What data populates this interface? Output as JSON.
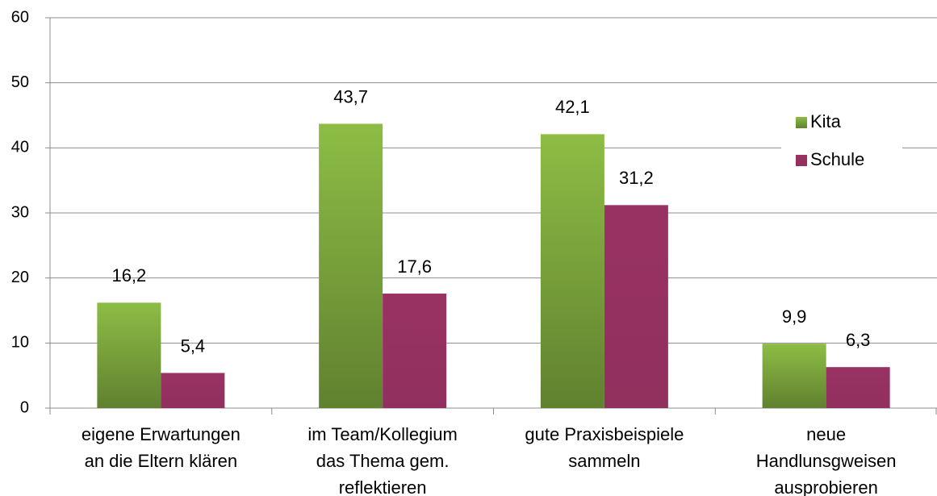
{
  "chart_data": {
    "type": "bar",
    "categories": [
      "eigene Erwartungen\nan die Eltern klären",
      "im Team/Kollegium\ndas Thema gem.\nreflektieren",
      "gute Praxisbeispiele\nsammeln",
      "neue\nHandlunsgweisen\nausprobieren"
    ],
    "series": [
      {
        "name": "Kita",
        "color": "#8dbd45",
        "values": [
          16.2,
          43.7,
          42.1,
          9.9
        ],
        "value_labels": [
          "16,2",
          "43,7",
          "42,1",
          "9,9"
        ]
      },
      {
        "name": "Schule",
        "color": "#993263",
        "values": [
          5.4,
          17.6,
          31.2,
          6.3
        ],
        "value_labels": [
          "5,4",
          "17,6",
          "31,2",
          "6,3"
        ]
      }
    ],
    "ylim": [
      0,
      60
    ],
    "yticks": [
      0,
      10,
      20,
      30,
      40,
      50,
      60
    ],
    "grid": true,
    "legend": "right"
  }
}
